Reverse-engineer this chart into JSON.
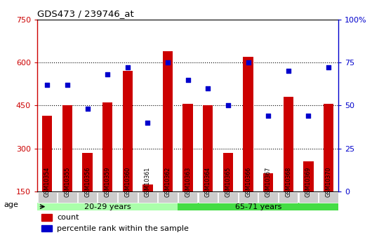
{
  "title": "GDS473 / 239746_at",
  "samples": [
    "GSM10354",
    "GSM10355",
    "GSM10356",
    "GSM10359",
    "GSM10360",
    "GSM10361",
    "GSM10362",
    "GSM10363",
    "GSM10364",
    "GSM10365",
    "GSM10366",
    "GSM10367",
    "GSM10368",
    "GSM10369",
    "GSM10370"
  ],
  "counts": [
    415,
    450,
    285,
    460,
    570,
    175,
    640,
    455,
    450,
    285,
    620,
    215,
    480,
    255,
    455
  ],
  "percentiles": [
    62,
    62,
    48,
    68,
    72,
    40,
    75,
    65,
    60,
    50,
    75,
    44,
    70,
    44,
    72
  ],
  "group1_label": "20-29 years",
  "group2_label": "65-71 years",
  "group1_count": 7,
  "group2_count": 8,
  "ylim_left": [
    150,
    750
  ],
  "ylim_right": [
    0,
    100
  ],
  "yticks_left": [
    150,
    300,
    450,
    600,
    750
  ],
  "yticks_right": [
    0,
    25,
    50,
    75,
    100
  ],
  "bar_color": "#cc0000",
  "scatter_color": "#0000cc",
  "group1_bg": "#aaffaa",
  "group2_bg": "#44dd44",
  "tick_bg": "#cccccc",
  "plot_bg": "#ffffff",
  "legend_bar_label": "count",
  "legend_scatter_label": "percentile rank within the sample",
  "age_label": "age",
  "grid_lines": [
    300,
    450,
    600
  ],
  "bar_width": 0.5
}
